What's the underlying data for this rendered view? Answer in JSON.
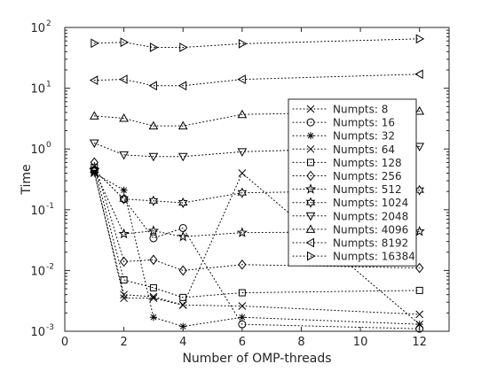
{
  "chart_data": {
    "type": "line",
    "xlabel": "Number of OMP-threads",
    "ylabel": "Time",
    "xlim": [
      0,
      13
    ],
    "ylim": [
      0.001,
      100
    ],
    "yscale": "log",
    "x_ticks": [
      "0",
      "2",
      "4",
      "6",
      "8",
      "10",
      "12"
    ],
    "y_ticks": [
      {
        "base": "10",
        "exp": "-3"
      },
      {
        "base": "10",
        "exp": "-2"
      },
      {
        "base": "10",
        "exp": "-1"
      },
      {
        "base": "10",
        "exp": "0"
      },
      {
        "base": "10",
        "exp": "1"
      },
      {
        "base": "10",
        "exp": "2"
      }
    ],
    "grid": false,
    "legend_position": "right",
    "x": [
      1,
      2,
      3,
      4,
      6,
      12
    ],
    "series": [
      {
        "name": "Numpts: 8",
        "marker": "x",
        "values": [
          0.4,
          0.004,
          0.0037,
          0.0027,
          0.0026,
          0.0019
        ]
      },
      {
        "name": "Numpts: 16",
        "marker": "circle",
        "values": [
          0.45,
          0.15,
          0.034,
          0.05,
          0.0013,
          0.0011
        ]
      },
      {
        "name": "Numpts: 32",
        "marker": "asterisk",
        "values": [
          0.4,
          0.21,
          0.0017,
          0.0012,
          0.0017,
          0.0013
        ]
      },
      {
        "name": "Numpts: 64",
        "marker": "x",
        "values": [
          0.42,
          0.0035,
          0.0035,
          0.0027,
          0.4,
          0.0013
        ]
      },
      {
        "name": "Numpts: 128",
        "marker": "square",
        "values": [
          0.5,
          0.007,
          0.0052,
          0.0036,
          0.0043,
          0.0047
        ]
      },
      {
        "name": "Numpts: 256",
        "marker": "diamond",
        "values": [
          0.6,
          0.014,
          0.015,
          0.01,
          0.0125,
          0.011
        ]
      },
      {
        "name": "Numpts: 512",
        "marker": "pentagram",
        "values": [
          0.45,
          0.04,
          0.045,
          0.036,
          0.042,
          0.044
        ]
      },
      {
        "name": "Numpts: 1024",
        "marker": "hexagram",
        "values": [
          0.45,
          0.15,
          0.14,
          0.13,
          0.19,
          0.21
        ]
      },
      {
        "name": "Numpts: 2048",
        "marker": "triangle-down",
        "values": [
          1.25,
          0.8,
          0.75,
          0.75,
          0.9,
          1.1
        ]
      },
      {
        "name": "Numpts: 4096",
        "marker": "triangle-up",
        "values": [
          3.5,
          3.2,
          2.4,
          2.4,
          3.7,
          4.2
        ]
      },
      {
        "name": "Numpts: 8192",
        "marker": "triangle-left",
        "values": [
          13.5,
          14,
          11,
          11,
          14,
          17
        ]
      },
      {
        "name": "Numpts: 16384",
        "marker": "triangle-right",
        "values": [
          55,
          57,
          47,
          47,
          54,
          65
        ]
      }
    ]
  }
}
